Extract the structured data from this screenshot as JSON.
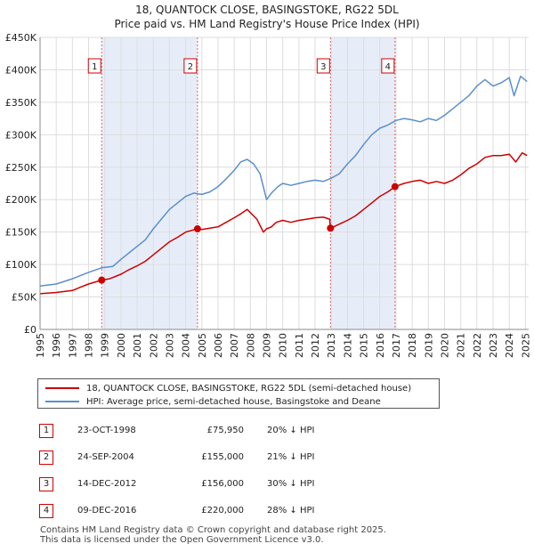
{
  "chart_data": {
    "type": "line",
    "title": "18, QUANTOCK CLOSE, BASINGSTOKE, RG22 5DL",
    "subtitle": "Price paid vs. HM Land Registry's House Price Index (HPI)",
    "xlim": [
      1995,
      2025.2
    ],
    "ylim": [
      0,
      450000
    ],
    "x_ticks": [
      "1995",
      "1996",
      "1997",
      "1998",
      "1999",
      "2000",
      "2001",
      "2002",
      "2003",
      "2004",
      "2005",
      "2006",
      "2007",
      "2008",
      "2009",
      "2010",
      "2011",
      "2012",
      "2013",
      "2014",
      "2015",
      "2016",
      "2017",
      "2018",
      "2019",
      "2020",
      "2021",
      "2022",
      "2023",
      "2024",
      "2025"
    ],
    "y_ticks": [
      {
        "value": 0,
        "label": "£0"
      },
      {
        "value": 50000,
        "label": "£50K"
      },
      {
        "value": 100000,
        "label": "£100K"
      },
      {
        "value": 150000,
        "label": "£150K"
      },
      {
        "value": 200000,
        "label": "£200K"
      },
      {
        "value": 250000,
        "label": "£250K"
      },
      {
        "value": 300000,
        "label": "£300K"
      },
      {
        "value": 350000,
        "label": "£350K"
      },
      {
        "value": 400000,
        "label": "£400K"
      },
      {
        "value": 450000,
        "label": "£450K"
      }
    ],
    "grid": true,
    "series": [
      {
        "name": "18, QUANTOCK CLOSE, BASINGSTOKE, RG22 5DL (semi-detached house)",
        "color": "#cc0000",
        "x": [
          1995,
          1996,
          1997,
          1997.5,
          1998,
          1998.81,
          1999.3,
          2000,
          2000.5,
          2001,
          2001.5,
          2002,
          2002.5,
          2003,
          2003.5,
          2004,
          2004.73,
          2005,
          2005.5,
          2006,
          2006.5,
          2007,
          2007.4,
          2007.8,
          2008,
          2008.4,
          2008.8,
          2009,
          2009.3,
          2009.6,
          2010,
          2010.5,
          2011,
          2011.5,
          2012,
          2012.5,
          2012.9,
          2012.95,
          2013.3,
          2014,
          2014.5,
          2015,
          2015.5,
          2016,
          2016.5,
          2016.94,
          2017.5,
          2018,
          2018.5,
          2019,
          2019.5,
          2020,
          2020.5,
          2021,
          2021.5,
          2022,
          2022.5,
          2023,
          2023.5,
          2024,
          2024.4,
          2024.8,
          2025.1
        ],
        "values": [
          55000,
          57000,
          60000,
          65000,
          70000,
          75950,
          78000,
          85000,
          92000,
          98000,
          105000,
          115000,
          125000,
          135000,
          142000,
          150000,
          155000,
          154000,
          156000,
          158000,
          165000,
          172000,
          178000,
          185000,
          180000,
          170000,
          150000,
          155000,
          158000,
          165000,
          168000,
          165000,
          168000,
          170000,
          172000,
          173000,
          170000,
          156000,
          160000,
          168000,
          175000,
          185000,
          195000,
          205000,
          212000,
          220000,
          225000,
          228000,
          230000,
          225000,
          228000,
          225000,
          230000,
          238000,
          248000,
          255000,
          265000,
          268000,
          268000,
          270000,
          258000,
          272000,
          268000
        ],
        "markers": [
          {
            "x": 1998.81,
            "y": 75950,
            "label": "1"
          },
          {
            "x": 2004.73,
            "y": 155000,
            "label": "2"
          },
          {
            "x": 2012.95,
            "y": 156000,
            "label": "3"
          },
          {
            "x": 2016.94,
            "y": 220000,
            "label": "4"
          }
        ]
      },
      {
        "name": "HPI: Average price, semi-detached house, Basingstoke and Deane",
        "color": "#5b8fcc",
        "x": [
          1995,
          1996,
          1997,
          1998,
          1998.8,
          1999.5,
          2000,
          2000.5,
          2001,
          2001.5,
          2002,
          2002.5,
          2003,
          2003.5,
          2004,
          2004.5,
          2005,
          2005.5,
          2006,
          2006.5,
          2007,
          2007.4,
          2007.8,
          2008.2,
          2008.6,
          2009,
          2009.3,
          2009.7,
          2010,
          2010.5,
          2011,
          2011.5,
          2012,
          2012.5,
          2013,
          2013.5,
          2014,
          2014.5,
          2015,
          2015.5,
          2016,
          2016.5,
          2017,
          2017.5,
          2018,
          2018.5,
          2019,
          2019.5,
          2020,
          2020.5,
          2021,
          2021.5,
          2022,
          2022.5,
          2023,
          2023.5,
          2024,
          2024.3,
          2024.7,
          2025.1
        ],
        "values": [
          67000,
          70000,
          78000,
          88000,
          95000,
          97000,
          108000,
          118000,
          128000,
          138000,
          155000,
          170000,
          185000,
          195000,
          205000,
          210000,
          208000,
          212000,
          220000,
          232000,
          245000,
          258000,
          262000,
          255000,
          240000,
          200000,
          210000,
          220000,
          225000,
          222000,
          225000,
          228000,
          230000,
          228000,
          233000,
          240000,
          255000,
          268000,
          285000,
          300000,
          310000,
          315000,
          322000,
          325000,
          323000,
          320000,
          325000,
          322000,
          330000,
          340000,
          350000,
          360000,
          375000,
          385000,
          375000,
          380000,
          388000,
          360000,
          390000,
          382000
        ]
      }
    ],
    "purchase_lines": [
      {
        "x": 1998.81,
        "label": "1"
      },
      {
        "x": 2004.73,
        "label": "2"
      },
      {
        "x": 2012.95,
        "label": "3"
      },
      {
        "x": 2016.94,
        "label": "4"
      }
    ]
  },
  "legend": {
    "property_label": "18, QUANTOCK CLOSE, BASINGSTOKE, RG22 5DL (semi-detached house)",
    "hpi_label": "HPI: Average price, semi-detached house, Basingstoke and Deane"
  },
  "transactions": [
    {
      "num": "1",
      "date": "23-OCT-1998",
      "price": "£75,950",
      "hpi": "20% ↓ HPI"
    },
    {
      "num": "2",
      "date": "24-SEP-2004",
      "price": "£155,000",
      "hpi": "21% ↓ HPI"
    },
    {
      "num": "3",
      "date": "14-DEC-2012",
      "price": "£156,000",
      "hpi": "30% ↓ HPI"
    },
    {
      "num": "4",
      "date": "09-DEC-2016",
      "price": "£220,000",
      "hpi": "28% ↓ HPI"
    }
  ],
  "footer": {
    "line1": "Contains HM Land Registry data © Crown copyright and database right 2025.",
    "line2": "This data is licensed under the Open Government Licence v3.0."
  },
  "colors": {
    "property": "#cc0000",
    "hpi": "#5b8fcc",
    "shade": "#dde6f5",
    "marker_border": "#cc0000"
  }
}
